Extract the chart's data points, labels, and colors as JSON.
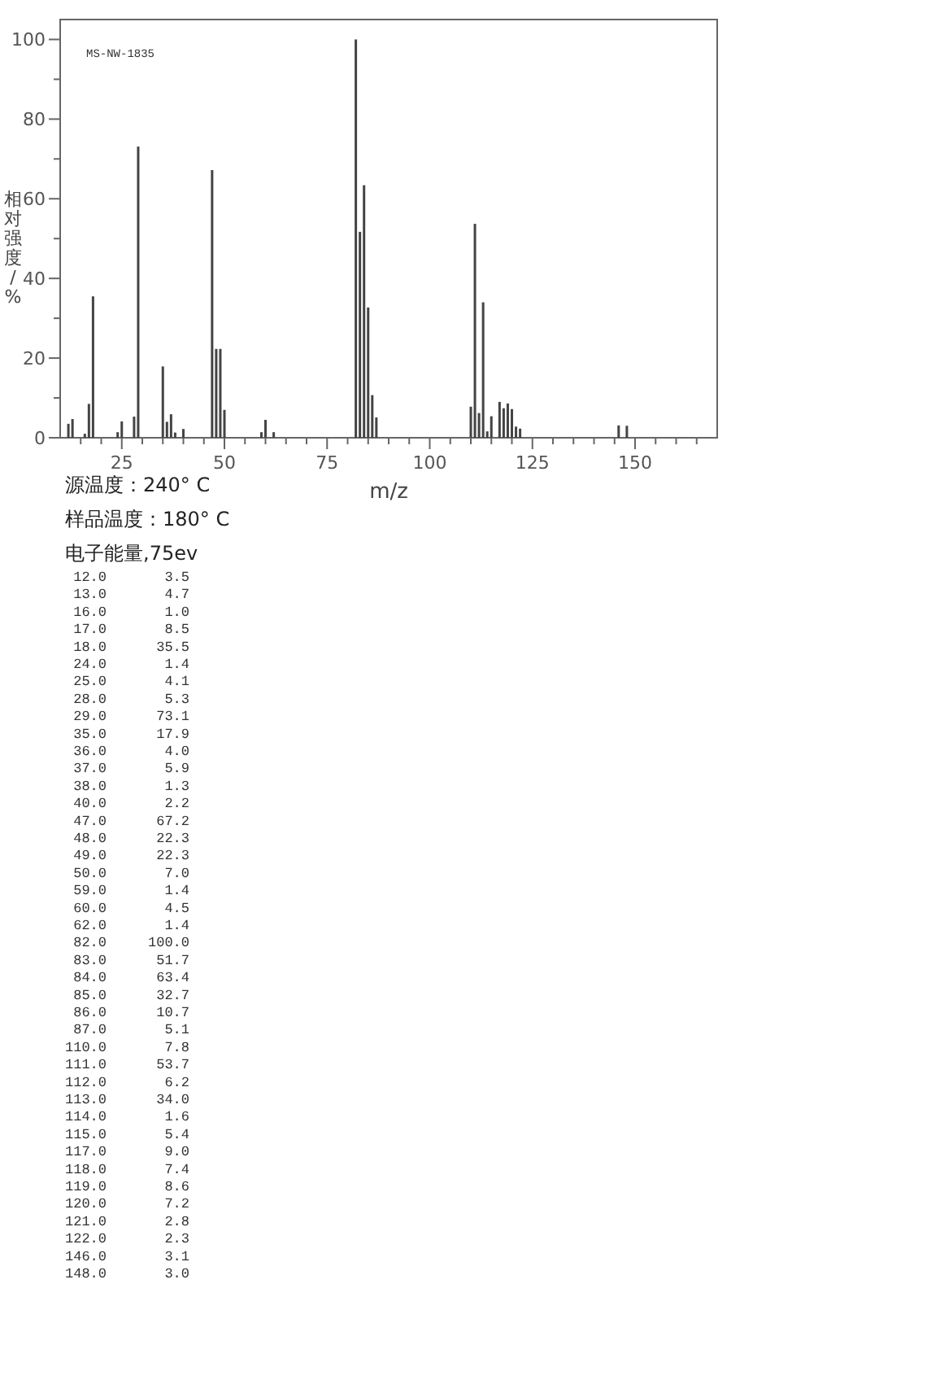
{
  "chart_data": {
    "type": "bar",
    "xlabel": "m/z",
    "ylabel": "相对强度/%",
    "x": [
      12,
      13,
      16,
      17,
      18,
      24,
      25,
      28,
      29,
      35,
      36,
      37,
      38,
      40,
      47,
      48,
      49,
      50,
      59,
      60,
      62,
      82,
      83,
      84,
      85,
      86,
      87,
      110,
      111,
      112,
      113,
      114,
      115,
      117,
      118,
      119,
      120,
      121,
      122,
      146,
      148
    ],
    "values": [
      3.5,
      4.7,
      1.0,
      8.5,
      35.5,
      1.4,
      4.1,
      5.3,
      73.1,
      17.9,
      4.0,
      5.9,
      1.3,
      2.2,
      67.2,
      22.3,
      22.3,
      7.0,
      1.4,
      4.5,
      1.4,
      100.0,
      51.7,
      63.4,
      32.7,
      10.7,
      5.1,
      7.8,
      53.7,
      6.2,
      34.0,
      1.6,
      5.4,
      9.0,
      7.4,
      8.6,
      7.2,
      2.8,
      2.3,
      3.1,
      3.0
    ],
    "color": "#444444",
    "xlim": [
      10,
      170
    ],
    "xticks": [
      {
        "value": 15,
        "label": null
      },
      {
        "value": 20,
        "label": null
      },
      25,
      {
        "value": 30,
        "label": null
      },
      {
        "value": 35,
        "label": null
      },
      {
        "value": 40,
        "label": null
      },
      {
        "value": 45,
        "label": null
      },
      50,
      {
        "value": 55,
        "label": null
      },
      {
        "value": 60,
        "label": null
      },
      {
        "value": 65,
        "label": null
      },
      {
        "value": 70,
        "label": null
      },
      75,
      {
        "value": 80,
        "label": null
      },
      {
        "value": 85,
        "label": null
      },
      {
        "value": 90,
        "label": null
      },
      {
        "value": 95,
        "label": null
      },
      100,
      {
        "value": 105,
        "label": null
      },
      {
        "value": 110,
        "label": null
      },
      {
        "value": 115,
        "label": null
      },
      {
        "value": 120,
        "label": null
      },
      125,
      {
        "value": 130,
        "label": null
      },
      {
        "value": 135,
        "label": null
      },
      {
        "value": 140,
        "label": null
      },
      {
        "value": 145,
        "label": null
      },
      150,
      {
        "value": 155,
        "label": null
      },
      {
        "value": 160,
        "label": null
      },
      {
        "value": 165,
        "label": null
      }
    ],
    "ylim": [
      0,
      105
    ],
    "yticks": [
      0,
      {
        "value": 10,
        "label": null
      },
      20,
      {
        "value": 30,
        "label": null
      },
      40,
      {
        "value": 50,
        "label": null
      },
      60,
      {
        "value": 70,
        "label": null
      },
      80,
      {
        "value": 90,
        "label": null
      },
      100
    ],
    "grid": false,
    "annotations": [
      "MS-NW-1835",
      "源温度：240° C",
      "样品温度：180° C",
      "电子能量,75ev",
      " 12.0       3.5",
      " 13.0       4.7",
      " 16.0       1.0",
      " 17.0       8.5",
      " 18.0      35.5",
      " 24.0       1.4",
      " 25.0       4.1",
      " 28.0       5.3",
      " 29.0      73.1",
      " 35.0      17.9",
      " 36.0       4.0",
      " 37.0       5.9",
      " 38.0       1.3",
      " 40.0       2.2",
      " 47.0      67.2",
      " 48.0      22.3",
      " 49.0      22.3",
      " 50.0       7.0",
      " 59.0       1.4",
      " 60.0       4.5",
      " 62.0       1.4",
      " 82.0     100.0",
      " 83.0      51.7",
      " 84.0      63.4",
      " 85.0      32.7",
      " 86.0      10.7",
      " 87.0       5.1",
      "110.0       7.8",
      "111.0      53.7",
      "112.0       6.2",
      "113.0      34.0",
      "114.0       1.6",
      "115.0       5.4",
      "117.0       9.0",
      "118.0       7.4",
      "119.0       8.6",
      "120.0       7.2",
      "121.0       2.8",
      "122.0       2.3",
      "146.0       3.1",
      "148.0       3.0"
    ]
  }
}
